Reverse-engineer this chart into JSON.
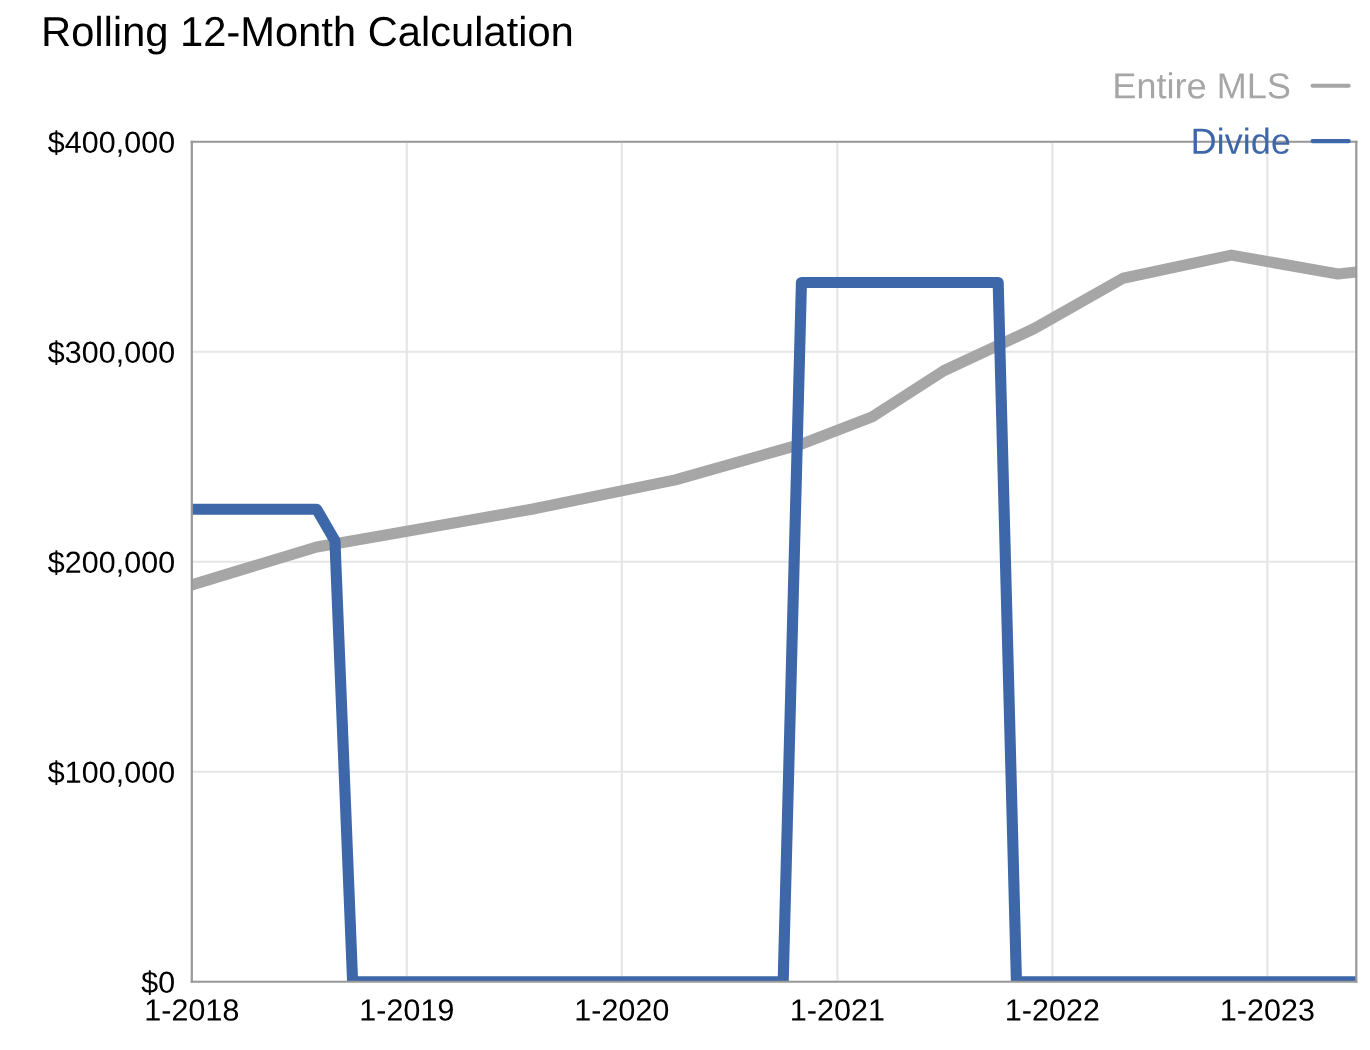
{
  "chart_data": {
    "type": "line",
    "title": "Rolling 12-Month Calculation",
    "series": [
      {
        "name": "Entire MLS",
        "color": "#a6a6a6",
        "x": [
          "2018-01",
          "2018-08",
          "2018-12",
          "2019-08",
          "2020-04",
          "2020-11",
          "2021-03",
          "2021-07",
          "2021-12",
          "2022-05",
          "2022-11",
          "2023-05",
          "2023-06"
        ],
        "values": [
          189000,
          207000,
          213000,
          225000,
          239000,
          256000,
          269000,
          291000,
          311000,
          335000,
          346000,
          337000,
          338000
        ]
      },
      {
        "name": "Divide",
        "color": "#3d67a8",
        "x": [
          "2018-01",
          "2018-08",
          "2018-09",
          "2018-10",
          "2020-10",
          "2020-11",
          "2021-10",
          "2021-11",
          "2023-06"
        ],
        "values": [
          225000,
          225000,
          210000,
          0,
          0,
          333000,
          333000,
          0,
          0
        ]
      }
    ],
    "xlim": [
      "2018-01",
      "2023-06"
    ],
    "xticks": [
      {
        "value": "2018-01",
        "label": "1-2018"
      },
      {
        "value": "2019-01",
        "label": "1-2019"
      },
      {
        "value": "2020-01",
        "label": "1-2020"
      },
      {
        "value": "2021-01",
        "label": "1-2021"
      },
      {
        "value": "2022-01",
        "label": "1-2022"
      },
      {
        "value": "2023-01",
        "label": "1-2023"
      }
    ],
    "ylim": [
      0,
      400000
    ],
    "yticks": [
      {
        "value": 0,
        "label": "$0"
      },
      {
        "value": 100000,
        "label": "$100,000"
      },
      {
        "value": 200000,
        "label": "$200,000"
      },
      {
        "value": 300000,
        "label": "$300,000"
      },
      {
        "value": 400000,
        "label": "$400,000"
      }
    ],
    "grid": true,
    "legend": "top right",
    "marker": "none",
    "line_style": "solid"
  }
}
